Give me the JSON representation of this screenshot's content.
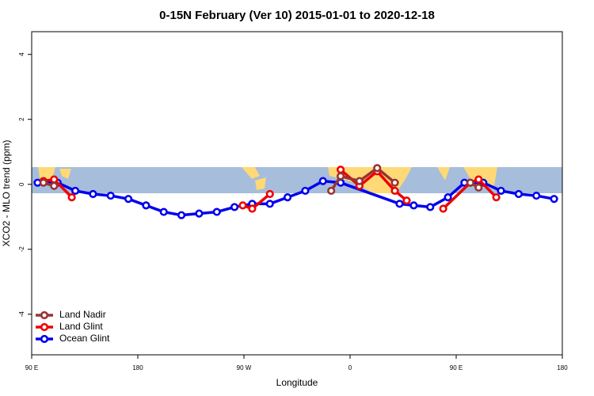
{
  "chart_data": {
    "type": "line",
    "title": "0-15N February (Ver 10)   2015-01-01 to 2020-12-18",
    "x_label": "Longitude",
    "y_label": "XCO2 - MLO trend (ppm)",
    "xlim": [
      90,
      540
    ],
    "xticks": [
      {
        "value": 90,
        "label": "90 E"
      },
      180,
      {
        "value": 270,
        "label": "90 W"
      },
      {
        "value": 360,
        "label": "0"
      },
      {
        "value": 450,
        "label": "90 E"
      },
      {
        "value": 540,
        "label": "180"
      }
    ],
    "ylim": [
      -5.25,
      4.7
    ],
    "yticks": [
      -4,
      -2,
      0,
      2,
      4
    ],
    "legend": "bottom-left",
    "series": [
      {
        "name": "Land Nadir",
        "color": "#993333",
        "x": [
          100,
          109,
          null,
          344,
          352,
          368,
          383,
          398,
          null,
          462,
          469
        ],
        "values": [
          0.05,
          -0.05,
          null,
          -0.2,
          0.25,
          0.1,
          0.5,
          0.05,
          null,
          0.05,
          -0.1
        ]
      },
      {
        "name": "Land Glint",
        "color": "#ee0000",
        "x": [
          100,
          109,
          124,
          null,
          269,
          277,
          292,
          null,
          352,
          368,
          383,
          398,
          408,
          null,
          439,
          462,
          469,
          484
        ],
        "values": [
          0.1,
          0.15,
          -0.4,
          null,
          -0.65,
          -0.75,
          -0.3,
          null,
          0.45,
          -0.05,
          0.4,
          -0.2,
          -0.5,
          null,
          -0.75,
          0.05,
          0.15,
          -0.4
        ]
      },
      {
        "name": "Ocean Glint",
        "color": "#0000ee",
        "x": [
          95,
          112,
          127,
          142,
          157,
          172,
          187,
          202,
          217,
          232,
          247,
          262,
          277,
          292,
          307,
          322,
          337,
          352,
          402,
          414,
          428,
          443,
          457,
          473,
          488,
          503,
          518,
          533
        ],
        "values": [
          0.05,
          0.05,
          -0.2,
          -0.3,
          -0.35,
          -0.45,
          -0.65,
          -0.85,
          -0.95,
          -0.9,
          -0.85,
          -0.7,
          -0.6,
          -0.6,
          -0.4,
          -0.2,
          0.1,
          0.05,
          -0.6,
          -0.65,
          -0.7,
          -0.4,
          0.05,
          0.05,
          -0.2,
          -0.3,
          -0.35,
          -0.45
        ]
      }
    ]
  }
}
